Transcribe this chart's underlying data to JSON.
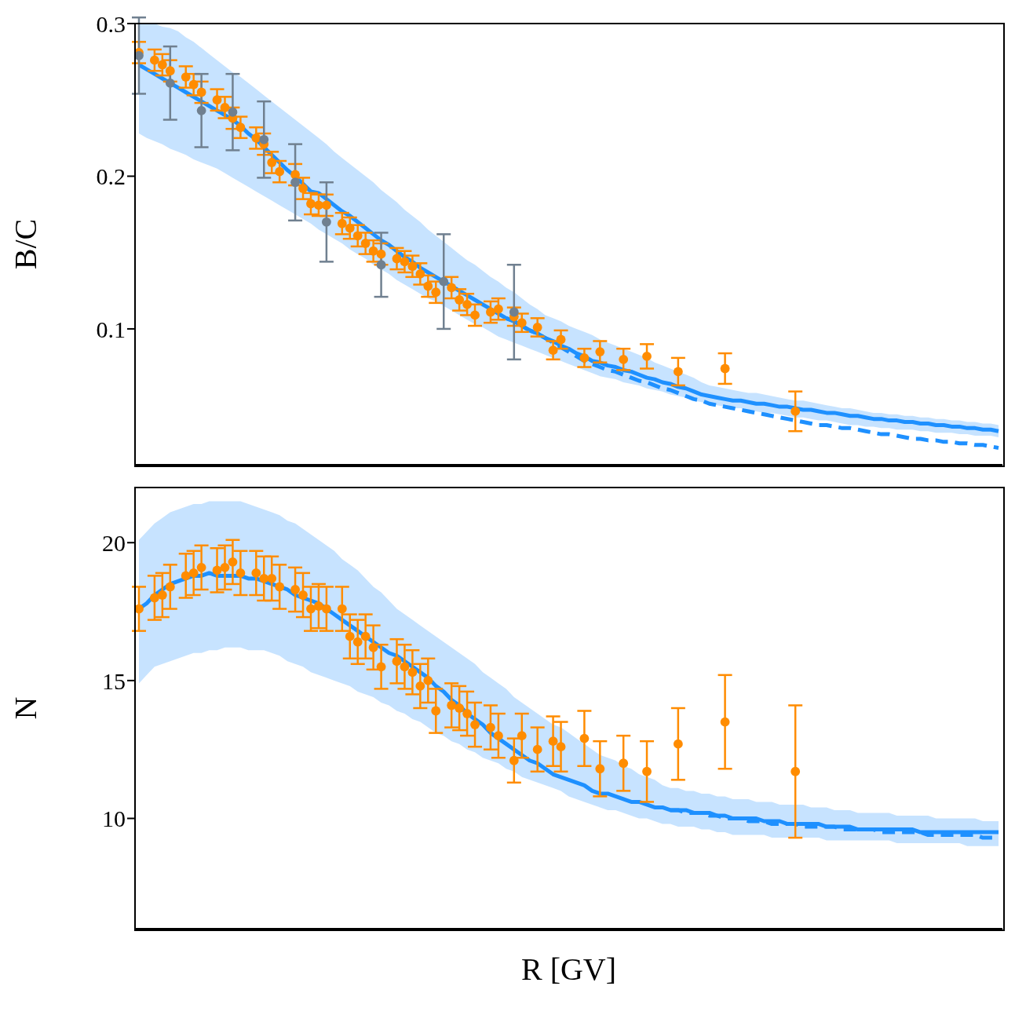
{
  "chart_data": [
    {
      "type": "scatter",
      "ylabel": "B/C",
      "categories": [
        null,
        null,
        null,
        null,
        null,
        null,
        null,
        null,
        null,
        null,
        null,
        null,
        null,
        null,
        null,
        null,
        null,
        null,
        null,
        null,
        null,
        null,
        null,
        null,
        null,
        null,
        null,
        null,
        null,
        null,
        null,
        null,
        null,
        null,
        null,
        null,
        null,
        null,
        null,
        null,
        null,
        null,
        null,
        null,
        null,
        null,
        null,
        null,
        null,
        null,
        null,
        null,
        null,
        null,
        null,
        null,
        null,
        null,
        null,
        null,
        null,
        null,
        null,
        null,
        null,
        null,
        null,
        null,
        null,
        null,
        null,
        null,
        null,
        null,
        null,
        null,
        null,
        null,
        null,
        null,
        null,
        null,
        null,
        null,
        null,
        null,
        null,
        null,
        null,
        null,
        null,
        null,
        null,
        null,
        null,
        null,
        null,
        null,
        null,
        null,
        null,
        null,
        null,
        null,
        null,
        null,
        null,
        null,
        null,
        null,
        null
      ],
      "ylim": [
        0.011,
        0.3
      ],
      "yticks": [
        0.1,
        0.2,
        0.3
      ],
      "tick_labels": "y",
      "grid": false,
      "marker": "circle",
      "series": [
        {
          "type": "line",
          "line_style": "solid",
          "marker": "none",
          "color": "#1e90ff",
          "values": [
            0.273,
            0.27,
            0.267,
            0.264,
            0.261,
            0.258,
            0.255,
            0.252,
            0.249,
            0.246,
            0.243,
            0.24,
            0.237,
            0.233,
            0.228,
            0.224,
            0.219,
            0.214,
            0.209,
            0.204,
            0.2,
            0.195,
            0.19,
            0.189,
            0.185,
            0.181,
            0.177,
            0.174,
            0.17,
            0.166,
            0.162,
            0.158,
            0.155,
            0.151,
            0.147,
            0.144,
            0.14,
            0.137,
            0.134,
            0.131,
            0.128,
            0.125,
            0.122,
            0.119,
            0.116,
            0.113,
            0.11,
            0.107,
            0.105,
            0.102,
            0.099,
            0.097,
            0.094,
            0.092,
            0.089,
            0.087,
            0.084,
            0.082,
            0.079,
            0.078,
            0.076,
            0.075,
            0.073,
            0.072,
            0.07,
            0.068,
            0.067,
            0.065,
            0.064,
            0.062,
            0.061,
            0.059,
            0.057,
            0.056,
            0.055,
            0.054,
            0.053,
            0.053,
            0.052,
            0.051,
            0.051,
            0.05,
            0.049,
            0.049,
            0.048,
            0.047,
            0.047,
            0.046,
            0.045,
            0.045,
            0.044,
            0.043,
            0.043,
            0.042,
            0.041,
            0.041,
            0.04,
            0.04,
            0.039,
            0.039,
            0.038,
            0.038,
            0.037,
            0.037,
            0.036,
            0.036,
            0.035,
            0.035,
            0.034,
            0.034,
            0.033
          ],
          "lower": [
            0.228,
            0.225,
            0.223,
            0.221,
            0.218,
            0.216,
            0.214,
            0.211,
            0.209,
            0.207,
            0.205,
            0.202,
            0.199,
            0.196,
            0.193,
            0.19,
            0.187,
            0.184,
            0.181,
            0.178,
            0.175,
            0.172,
            0.169,
            0.165,
            0.162,
            0.159,
            0.156,
            0.152,
            0.149,
            0.146,
            0.142,
            0.139,
            0.136,
            0.132,
            0.129,
            0.126,
            0.123,
            0.12,
            0.118,
            0.115,
            0.112,
            0.109,
            0.106,
            0.103,
            0.101,
            0.098,
            0.095,
            0.093,
            0.091,
            0.089,
            0.087,
            0.085,
            0.083,
            0.081,
            0.079,
            0.077,
            0.075,
            0.073,
            0.071,
            0.069,
            0.068,
            0.067,
            0.065,
            0.064,
            0.063,
            0.061,
            0.06,
            0.059,
            0.057,
            0.056,
            0.055,
            0.053,
            0.052,
            0.051,
            0.05,
            0.049,
            0.048,
            0.048,
            0.047,
            0.046,
            0.045,
            0.045,
            0.044,
            0.043,
            0.042,
            0.042,
            0.041,
            0.04,
            0.04,
            0.039,
            0.038,
            0.037,
            0.037,
            0.036,
            0.036,
            0.035,
            0.035,
            0.034,
            0.034,
            0.034,
            0.033,
            0.033,
            0.032,
            0.032,
            0.032,
            0.031,
            0.031,
            0.03,
            0.03,
            0.03,
            0.029
          ],
          "upper": [
            0.3,
            0.3,
            0.3,
            0.298,
            0.297,
            0.295,
            0.291,
            0.288,
            0.284,
            0.28,
            0.276,
            0.272,
            0.268,
            0.265,
            0.261,
            0.257,
            0.253,
            0.249,
            0.245,
            0.241,
            0.237,
            0.233,
            0.229,
            0.225,
            0.221,
            0.216,
            0.212,
            0.208,
            0.204,
            0.2,
            0.196,
            0.191,
            0.187,
            0.183,
            0.178,
            0.174,
            0.17,
            0.165,
            0.161,
            0.157,
            0.153,
            0.149,
            0.145,
            0.142,
            0.138,
            0.134,
            0.131,
            0.127,
            0.124,
            0.12,
            0.116,
            0.113,
            0.109,
            0.107,
            0.105,
            0.102,
            0.1,
            0.098,
            0.096,
            0.093,
            0.091,
            0.089,
            0.087,
            0.085,
            0.083,
            0.081,
            0.078,
            0.076,
            0.074,
            0.072,
            0.07,
            0.068,
            0.065,
            0.063,
            0.062,
            0.061,
            0.06,
            0.059,
            0.058,
            0.058,
            0.057,
            0.056,
            0.055,
            0.054,
            0.053,
            0.053,
            0.052,
            0.051,
            0.05,
            0.049,
            0.048,
            0.048,
            0.047,
            0.046,
            0.045,
            0.045,
            0.044,
            0.044,
            0.043,
            0.043,
            0.042,
            0.042,
            0.041,
            0.041,
            0.04,
            0.04,
            0.039,
            0.039,
            0.038,
            0.038,
            0.037
          ]
        },
        {
          "type": "line",
          "line_style": "dashed",
          "marker": "none",
          "color": "#1e90ff",
          "values": [
            null,
            null,
            null,
            null,
            null,
            null,
            null,
            null,
            null,
            null,
            null,
            null,
            null,
            null,
            null,
            null,
            null,
            null,
            null,
            null,
            null,
            null,
            null,
            null,
            null,
            null,
            null,
            null,
            null,
            null,
            null,
            null,
            null,
            null,
            null,
            null,
            null,
            null,
            null,
            null,
            null,
            null,
            null,
            null,
            null,
            null,
            null,
            0.107,
            0.105,
            0.102,
            0.099,
            0.097,
            0.094,
            0.091,
            0.088,
            0.085,
            0.082,
            0.079,
            0.077,
            0.075,
            0.073,
            0.072,
            0.07,
            0.068,
            0.066,
            0.065,
            0.063,
            0.061,
            0.06,
            0.058,
            0.056,
            0.054,
            0.053,
            0.051,
            0.05,
            0.049,
            0.048,
            0.047,
            0.046,
            0.045,
            0.044,
            0.043,
            0.042,
            0.041,
            0.04,
            0.039,
            0.038,
            0.037,
            0.037,
            0.036,
            0.035,
            0.035,
            0.034,
            0.033,
            0.032,
            0.031,
            0.031,
            0.03,
            0.029,
            0.028,
            0.028,
            0.027,
            0.027,
            0.026,
            0.026,
            0.025,
            0.025,
            0.024,
            0.024,
            0.023,
            0.022
          ]
        },
        {
          "color": "#ff8c00",
          "values": [
            0.281,
            null,
            0.276,
            0.273,
            0.269,
            null,
            0.265,
            0.26,
            0.255,
            null,
            0.25,
            0.245,
            0.238,
            0.232,
            null,
            0.225,
            0.221,
            0.209,
            0.203,
            null,
            0.201,
            0.192,
            0.182,
            0.181,
            0.181,
            null,
            0.169,
            0.166,
            0.161,
            0.156,
            0.151,
            0.149,
            null,
            0.146,
            0.144,
            0.141,
            0.136,
            0.128,
            0.124,
            null,
            0.127,
            0.119,
            0.116,
            0.109,
            null,
            0.111,
            0.113,
            null,
            0.108,
            0.104,
            null,
            0.101,
            null,
            0.086,
            0.093,
            null,
            null,
            0.081,
            null,
            0.085,
            null,
            null,
            0.08,
            null,
            null,
            0.082,
            null,
            null,
            null,
            0.072,
            null,
            null,
            null,
            null,
            null,
            0.074,
            null,
            null,
            null,
            null,
            null,
            null,
            null,
            null,
            0.046,
            null,
            null,
            null,
            null,
            null,
            null,
            null,
            null,
            null,
            null,
            null,
            null,
            null,
            null,
            null,
            null,
            null,
            null,
            null,
            null,
            null,
            null,
            null,
            null,
            null,
            null
          ],
          "errors": [
            0.007,
            null,
            0.007,
            0.007,
            0.007,
            null,
            0.007,
            0.007,
            0.007,
            null,
            0.007,
            0.007,
            0.007,
            0.007,
            null,
            0.007,
            0.007,
            0.007,
            0.007,
            null,
            0.007,
            0.007,
            0.007,
            0.007,
            0.007,
            null,
            0.007,
            0.007,
            0.007,
            0.007,
            0.007,
            0.007,
            null,
            0.007,
            0.007,
            0.007,
            0.007,
            0.007,
            0.007,
            null,
            0.007,
            0.007,
            0.007,
            0.007,
            null,
            0.007,
            0.007,
            null,
            0.006,
            0.006,
            null,
            0.006,
            null,
            0.006,
            0.006,
            null,
            null,
            0.006,
            null,
            0.007,
            null,
            null,
            0.007,
            null,
            null,
            0.008,
            null,
            null,
            null,
            0.009,
            null,
            null,
            null,
            null,
            null,
            0.01,
            null,
            null,
            null,
            null,
            null,
            null,
            null,
            null,
            0.013,
            null,
            null,
            null,
            null,
            null,
            null,
            null,
            null,
            null,
            null,
            null,
            null,
            null,
            null,
            null,
            null,
            null,
            null,
            null,
            null,
            null,
            null,
            null,
            null,
            null,
            null
          ]
        },
        {
          "color": "#708090",
          "values": [
            0.279,
            null,
            null,
            null,
            0.261,
            null,
            null,
            null,
            0.243,
            null,
            null,
            null,
            0.242,
            null,
            null,
            null,
            0.224,
            null,
            null,
            null,
            0.196,
            null,
            null,
            null,
            0.17,
            null,
            null,
            null,
            null,
            null,
            null,
            0.142,
            null,
            null,
            null,
            null,
            null,
            null,
            null,
            0.131,
            null,
            null,
            null,
            null,
            null,
            null,
            null,
            null,
            0.111,
            null,
            null,
            null,
            null,
            null,
            null,
            null,
            null,
            null,
            null,
            null,
            null,
            null,
            null,
            null,
            null,
            null,
            null,
            null,
            null,
            null,
            null,
            null,
            null,
            null,
            null,
            null,
            null,
            null,
            null,
            null,
            null,
            null,
            null,
            null,
            null,
            null,
            null,
            null,
            null,
            null,
            null,
            null,
            null,
            null,
            null,
            null,
            null,
            null,
            null,
            null,
            null,
            null,
            null,
            null,
            null,
            null,
            null,
            null,
            null,
            null,
            null
          ],
          "errors": [
            0.025,
            null,
            null,
            null,
            0.024,
            null,
            null,
            null,
            0.024,
            null,
            null,
            null,
            0.025,
            null,
            null,
            null,
            0.025,
            null,
            null,
            null,
            0.025,
            null,
            null,
            null,
            0.026,
            null,
            null,
            null,
            null,
            null,
            null,
            0.021,
            null,
            null,
            null,
            null,
            null,
            null,
            null,
            0.031,
            null,
            null,
            null,
            null,
            null,
            null,
            null,
            null,
            0.031,
            null,
            null,
            null,
            null,
            null,
            null,
            null,
            null,
            null,
            null,
            null,
            null,
            null,
            null,
            null,
            null,
            null,
            null,
            null,
            null,
            null,
            null,
            null,
            null,
            null,
            null,
            null,
            null,
            null,
            null,
            null,
            null,
            null,
            null,
            null,
            null,
            null,
            null,
            null,
            null,
            null,
            null,
            null,
            null,
            null,
            null,
            null,
            null,
            null,
            null,
            null,
            null,
            null,
            null,
            null,
            null,
            null,
            null,
            null,
            null,
            null,
            null
          ]
        }
      ]
    },
    {
      "type": "scatter",
      "xlabel": "R [GV]",
      "ylabel": "N",
      "categories": [
        null,
        null,
        null,
        null,
        null,
        null,
        null,
        null,
        null,
        null,
        null,
        null,
        null,
        null,
        null,
        null,
        null,
        null,
        null,
        null,
        null,
        null,
        null,
        null,
        null,
        null,
        null,
        null,
        null,
        null,
        null,
        null,
        null,
        null,
        null,
        null,
        null,
        null,
        null,
        null,
        null,
        null,
        null,
        null,
        null,
        null,
        null,
        null,
        null,
        null,
        null,
        null,
        null,
        null,
        null,
        null,
        null,
        null,
        null,
        null,
        null,
        null,
        null,
        null,
        null,
        null,
        null,
        null,
        null,
        null,
        null,
        null,
        null,
        null,
        null,
        null,
        null,
        null,
        null,
        null,
        null,
        null,
        null,
        null,
        null,
        null,
        null,
        null,
        null,
        null,
        null,
        null,
        null,
        null,
        null,
        null,
        null,
        null,
        null,
        null,
        null,
        null,
        null,
        null,
        null,
        null,
        null,
        null,
        null,
        null,
        null
      ],
      "ylim": [
        6,
        22
      ],
      "yticks": [
        10,
        15,
        20
      ],
      "tick_labels": "y",
      "grid": false,
      "marker": "circle",
      "series": [
        {
          "type": "line",
          "line_style": "solid",
          "marker": "none",
          "color": "#1e90ff",
          "values": [
            17.6,
            17.8,
            18.1,
            18.3,
            18.5,
            18.6,
            18.7,
            18.8,
            18.8,
            18.9,
            18.8,
            18.8,
            18.8,
            18.8,
            18.7,
            18.7,
            18.6,
            18.5,
            18.4,
            18.3,
            18.1,
            18.0,
            17.9,
            17.8,
            17.6,
            17.4,
            17.2,
            17.0,
            16.8,
            16.6,
            16.4,
            16.2,
            16.0,
            15.9,
            15.7,
            15.5,
            15.3,
            15.1,
            14.8,
            14.6,
            14.3,
            14.1,
            13.8,
            13.6,
            13.4,
            13.1,
            12.9,
            12.7,
            12.5,
            12.3,
            12.1,
            12.0,
            11.8,
            11.6,
            11.5,
            11.4,
            11.3,
            11.2,
            11.0,
            10.9,
            10.9,
            10.8,
            10.7,
            10.6,
            10.6,
            10.5,
            10.4,
            10.4,
            10.3,
            10.3,
            10.3,
            10.2,
            10.2,
            10.2,
            10.1,
            10.1,
            10.0,
            10.0,
            10.0,
            10.0,
            9.9,
            9.9,
            9.9,
            9.8,
            9.8,
            9.8,
            9.8,
            9.8,
            9.7,
            9.7,
            9.7,
            9.7,
            9.6,
            9.6,
            9.6,
            9.6,
            9.6,
            9.6,
            9.6,
            9.6,
            9.5,
            9.5,
            9.5,
            9.5,
            9.5,
            9.5,
            9.5,
            9.5,
            9.5,
            9.5,
            9.5
          ],
          "lower": [
            14.9,
            15.2,
            15.5,
            15.6,
            15.7,
            15.8,
            15.9,
            16.0,
            16.0,
            16.1,
            16.1,
            16.2,
            16.2,
            16.2,
            16.1,
            16.1,
            16.1,
            16.0,
            15.9,
            15.7,
            15.6,
            15.5,
            15.3,
            15.2,
            15.1,
            15.0,
            14.9,
            14.8,
            14.6,
            14.5,
            14.4,
            14.2,
            14.1,
            13.9,
            13.8,
            13.6,
            13.5,
            13.3,
            13.1,
            13.0,
            12.8,
            12.7,
            12.5,
            12.4,
            12.2,
            12.1,
            12.0,
            11.8,
            11.7,
            11.5,
            11.4,
            11.3,
            11.2,
            11.1,
            11.0,
            10.8,
            10.7,
            10.6,
            10.5,
            10.4,
            10.3,
            10.3,
            10.2,
            10.1,
            10.0,
            10.0,
            9.9,
            9.8,
            9.8,
            9.7,
            9.7,
            9.7,
            9.6,
            9.6,
            9.5,
            9.5,
            9.4,
            9.4,
            9.4,
            9.4,
            9.4,
            9.3,
            9.3,
            9.3,
            9.3,
            9.3,
            9.3,
            9.3,
            9.2,
            9.2,
            9.2,
            9.2,
            9.2,
            9.2,
            9.2,
            9.2,
            9.2,
            9.1,
            9.1,
            9.1,
            9.1,
            9.1,
            9.1,
            9.1,
            9.1,
            9.1,
            9.0,
            9.0,
            9.0,
            9.0,
            9.0
          ],
          "upper": [
            20.1,
            20.4,
            20.7,
            20.9,
            21.1,
            21.2,
            21.3,
            21.4,
            21.4,
            21.5,
            21.5,
            21.5,
            21.5,
            21.5,
            21.4,
            21.3,
            21.2,
            21.1,
            21.0,
            20.8,
            20.7,
            20.5,
            20.3,
            20.1,
            19.9,
            19.7,
            19.4,
            19.2,
            19.0,
            18.7,
            18.4,
            18.2,
            17.9,
            17.6,
            17.4,
            17.2,
            17.0,
            16.8,
            16.6,
            16.4,
            16.2,
            16.0,
            15.8,
            15.6,
            15.3,
            15.1,
            14.9,
            14.7,
            14.4,
            14.2,
            14.0,
            13.8,
            13.6,
            13.4,
            13.3,
            13.1,
            12.9,
            12.7,
            12.5,
            12.3,
            12.2,
            12.1,
            11.9,
            11.8,
            11.6,
            11.5,
            11.4,
            11.2,
            11.1,
            11.1,
            11.0,
            11.0,
            10.9,
            10.9,
            10.8,
            10.8,
            10.7,
            10.7,
            10.7,
            10.6,
            10.6,
            10.6,
            10.5,
            10.5,
            10.5,
            10.5,
            10.4,
            10.4,
            10.4,
            10.3,
            10.3,
            10.3,
            10.2,
            10.2,
            10.2,
            10.2,
            10.2,
            10.1,
            10.1,
            10.1,
            10.1,
            10.1,
            10.0,
            10.0,
            10.0,
            10.0,
            10.0,
            10.0,
            9.9,
            9.9,
            9.9
          ]
        },
        {
          "type": "line",
          "line_style": "dashed",
          "marker": "none",
          "color": "#1e90ff",
          "values": [
            null,
            null,
            null,
            null,
            null,
            null,
            null,
            null,
            null,
            null,
            null,
            null,
            null,
            null,
            null,
            null,
            null,
            null,
            null,
            null,
            null,
            null,
            null,
            null,
            null,
            null,
            null,
            null,
            null,
            null,
            null,
            null,
            null,
            null,
            null,
            null,
            null,
            null,
            null,
            null,
            null,
            null,
            null,
            null,
            null,
            null,
            null,
            null,
            null,
            null,
            null,
            null,
            null,
            null,
            null,
            null,
            null,
            null,
            null,
            null,
            null,
            null,
            null,
            null,
            null,
            null,
            null,
            null,
            10.3,
            10.3,
            10.2,
            10.2,
            10.2,
            10.1,
            10.1,
            10.0,
            10.0,
            10.0,
            9.9,
            9.9,
            9.9,
            9.8,
            9.8,
            9.8,
            9.8,
            9.7,
            9.7,
            9.7,
            9.7,
            9.7,
            9.6,
            9.6,
            9.6,
            9.6,
            9.6,
            9.5,
            9.5,
            9.5,
            9.5,
            9.5,
            9.5,
            9.4,
            9.4,
            9.4,
            9.4,
            9.4,
            9.4,
            9.4,
            9.3,
            9.3,
            9.3
          ]
        },
        {
          "color": "#ff8c00",
          "values": [
            17.6,
            null,
            18.0,
            18.1,
            18.4,
            null,
            18.8,
            18.9,
            19.1,
            null,
            19.0,
            19.1,
            19.3,
            18.9,
            null,
            18.9,
            18.7,
            18.7,
            18.4,
            null,
            18.3,
            18.1,
            17.6,
            17.7,
            17.6,
            null,
            17.6,
            16.6,
            16.4,
            16.6,
            16.2,
            15.5,
            null,
            15.7,
            15.5,
            15.3,
            14.8,
            15.0,
            13.9,
            null,
            14.1,
            14.0,
            13.8,
            13.4,
            null,
            13.3,
            13.0,
            null,
            12.1,
            13.0,
            null,
            12.5,
            null,
            12.8,
            12.6,
            null,
            null,
            12.9,
            null,
            11.8,
            null,
            null,
            12.0,
            null,
            null,
            11.7,
            null,
            null,
            null,
            12.7,
            null,
            null,
            null,
            null,
            null,
            13.5,
            null,
            null,
            null,
            null,
            null,
            null,
            null,
            null,
            11.7,
            null,
            null,
            null,
            null,
            null,
            null,
            null,
            null,
            null,
            null,
            null,
            null,
            null,
            null,
            null,
            null,
            null,
            null,
            null,
            null,
            null,
            null,
            null,
            null,
            null,
            null
          ],
          "errors": [
            0.8,
            null,
            0.8,
            0.8,
            0.8,
            null,
            0.8,
            0.8,
            0.8,
            null,
            0.8,
            0.8,
            0.8,
            0.8,
            null,
            0.8,
            0.8,
            0.8,
            0.8,
            null,
            0.8,
            0.8,
            0.8,
            0.8,
            0.8,
            null,
            0.8,
            0.8,
            0.8,
            0.8,
            0.8,
            0.8,
            null,
            0.8,
            0.8,
            0.8,
            0.8,
            0.8,
            0.8,
            null,
            0.8,
            0.8,
            0.8,
            0.8,
            null,
            0.8,
            0.8,
            null,
            0.8,
            0.8,
            null,
            0.8,
            null,
            0.9,
            0.9,
            null,
            null,
            1.0,
            null,
            1.0,
            null,
            null,
            1.0,
            null,
            null,
            1.1,
            null,
            null,
            null,
            1.3,
            null,
            null,
            null,
            null,
            null,
            1.7,
            null,
            null,
            null,
            null,
            null,
            null,
            null,
            null,
            2.4,
            null,
            null,
            null,
            null,
            null,
            null,
            null,
            null,
            null,
            null,
            null,
            null,
            null,
            null,
            null,
            null,
            null,
            null,
            null,
            null,
            null,
            null,
            null,
            null,
            null,
            null
          ]
        }
      ]
    }
  ]
}
